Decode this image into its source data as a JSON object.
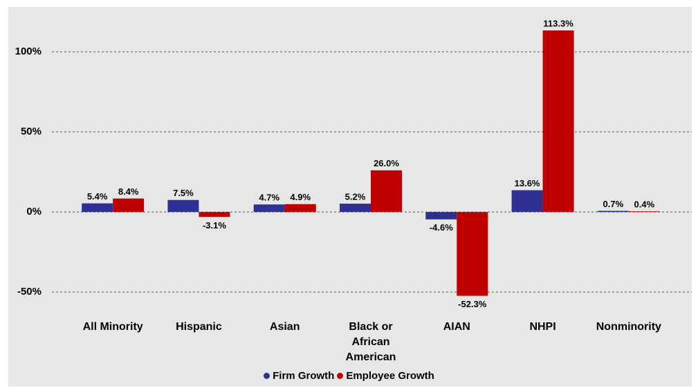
{
  "chart_data": {
    "type": "bar",
    "categories": [
      "All Minority",
      "Hispanic",
      "Asian",
      "Black or African American",
      "AIAN",
      "NHPI",
      "Nonminority"
    ],
    "series": [
      {
        "name": "Firm Growth",
        "color": "#2e3192",
        "values": [
          5.4,
          7.5,
          4.7,
          5.2,
          -4.6,
          13.6,
          0.7
        ],
        "value_labels": [
          "5.4%",
          "7.5%",
          "4.7%",
          "5.2%",
          "-4.6%",
          "13.6%",
          "0.7%"
        ]
      },
      {
        "name": "Employee Growth",
        "color": "#c00000",
        "values": [
          8.4,
          -3.1,
          4.9,
          26.0,
          -52.3,
          113.3,
          0.4
        ],
        "value_labels": [
          "8.4%",
          "-3.1%",
          "4.9%",
          "26.0%",
          "-52.3%",
          "113.3%",
          "0.4%"
        ]
      }
    ],
    "ylim": [
      -65,
      128
    ],
    "yticks": [
      {
        "value": -50,
        "label": "-50%"
      },
      {
        "value": 0,
        "label": "0%"
      },
      {
        "value": 50,
        "label": "50%"
      },
      {
        "value": 100,
        "label": "100%"
      }
    ],
    "grid": true,
    "legend": "bottom"
  }
}
